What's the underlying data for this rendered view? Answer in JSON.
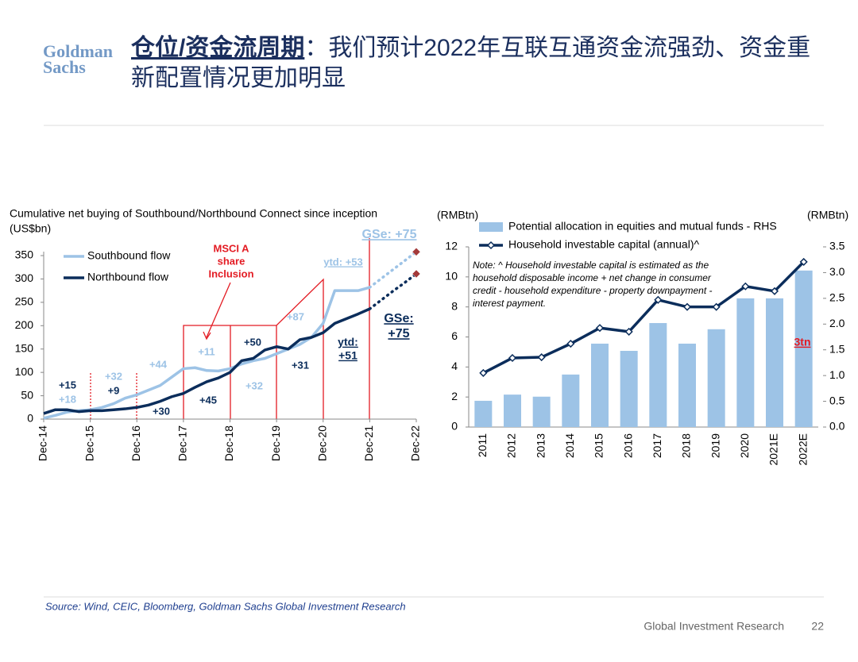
{
  "header": {
    "logo": [
      "Goldman",
      "Sachs"
    ],
    "title_highlight": "仓位/资金流周期",
    "title_rest": "：我们预计2022年互联互通资金流强劲、资金重新配置情况更加明显"
  },
  "chart_data": [
    {
      "type": "line",
      "title": "Cumulative net buying of Southbound/Northbound Connect since inception",
      "y_label": "(US$bn)",
      "x": [
        "Dec-14",
        "Mar-15",
        "Jun-15",
        "Sep-15",
        "Dec-15",
        "Mar-16",
        "Jun-16",
        "Sep-16",
        "Dec-16",
        "Mar-17",
        "Jun-17",
        "Sep-17",
        "Dec-17",
        "Mar-18",
        "Jun-18",
        "Sep-18",
        "Dec-18",
        "Mar-19",
        "Jun-19",
        "Sep-19",
        "Dec-19",
        "Mar-20",
        "Jun-20",
        "Sep-20",
        "Dec-20",
        "Mar-21",
        "Jun-21",
        "Sep-21",
        "Dec-21",
        "Mar-22",
        "Jun-22",
        "Sep-22",
        "Dec-22"
      ],
      "xticks": [
        "Dec-14",
        "Dec-15",
        "Dec-16",
        "Dec-17",
        "Dec-18",
        "Dec-19",
        "Dec-20",
        "Dec-21",
        "Dec-22"
      ],
      "ylim": [
        0,
        350
      ],
      "yticks": [
        0,
        50,
        100,
        150,
        200,
        250,
        300,
        350
      ],
      "forecast_from": "Dec-21",
      "series": [
        {
          "name": "Southbound flow",
          "color": "#9dc3e6",
          "values": [
            2,
            8,
            15,
            18,
            20,
            25,
            33,
            45,
            52,
            62,
            72,
            90,
            108,
            110,
            104,
            103,
            108,
            118,
            125,
            130,
            140,
            150,
            160,
            175,
            205,
            275,
            275,
            275,
            282,
            301,
            320,
            339,
            358
          ]
        },
        {
          "name": "Northbound flow",
          "color": "#0b2d5b",
          "values": [
            12,
            20,
            20,
            16,
            18,
            18,
            20,
            22,
            25,
            30,
            38,
            48,
            55,
            68,
            80,
            88,
            100,
            125,
            130,
            148,
            155,
            150,
            170,
            175,
            185,
            205,
            215,
            225,
            236,
            255,
            274,
            292,
            311
          ]
        }
      ],
      "annotations": [
        {
          "lines": [
            "GSe: +75"
          ],
          "color": "#9dc3e6",
          "underline": true
        },
        {
          "lines": [
            "ytd: +53"
          ],
          "color": "#9dc3e6",
          "underline": true
        },
        {
          "lines": [
            "+87"
          ],
          "color": "#9dc3e6"
        },
        {
          "lines": [
            "MSCI A",
            "share",
            "Inclusion"
          ],
          "color": "#e31b23"
        },
        {
          "lines": [
            "+11"
          ],
          "color": "#9dc3e6"
        },
        {
          "lines": [
            "+50"
          ],
          "color": "#0b2d5b"
        },
        {
          "lines": [
            "+44"
          ],
          "color": "#9dc3e6"
        },
        {
          "lines": [
            "+32"
          ],
          "color": "#9dc3e6"
        },
        {
          "lines": [
            "+9"
          ],
          "color": "#0b2d5b"
        },
        {
          "lines": [
            "+15"
          ],
          "color": "#0b2d5b"
        },
        {
          "lines": [
            "+18"
          ],
          "color": "#9dc3e6"
        },
        {
          "lines": [
            "+30"
          ],
          "color": "#0b2d5b"
        },
        {
          "lines": [
            "+45"
          ],
          "color": "#0b2d5b"
        },
        {
          "lines": [
            "+32"
          ],
          "color": "#9dc3e6"
        },
        {
          "lines": [
            "+31"
          ],
          "color": "#0b2d5b"
        },
        {
          "lines": [
            "ytd:",
            "+51"
          ],
          "color": "#0b2d5b",
          "underline": true
        },
        {
          "lines": [
            "GSe:",
            "+75"
          ],
          "color": "#0b2d5b",
          "underline": true
        }
      ]
    },
    {
      "type": "bar_line",
      "categories": [
        "2011",
        "2012",
        "2013",
        "2014",
        "2015",
        "2016",
        "2017",
        "2018",
        "2019",
        "2020",
        "2021E",
        "2022E"
      ],
      "y_label_left": "(RMBtn)",
      "y_label_right": "(RMBtn)",
      "ylim": [
        0,
        12
      ],
      "yticks": [
        0,
        2,
        4,
        6,
        8,
        10,
        12
      ],
      "y2lim": [
        0,
        3.5
      ],
      "y2ticks": [
        {
          "value": 0,
          "label": "0.0"
        },
        0.5,
        {
          "value": 1,
          "label": "1.0"
        },
        1.5,
        {
          "value": 2,
          "label": "2.0"
        },
        2.5,
        {
          "value": 3,
          "label": "3.0"
        },
        3.5
      ],
      "series": [
        {
          "name": "Potential allocation in equities and mutual funds - RHS",
          "type": "bar",
          "axis": "y2",
          "color": "#9dc3e6",
          "values": [
            0.51,
            0.63,
            0.59,
            1.02,
            1.62,
            1.48,
            2.02,
            1.62,
            1.9,
            2.5,
            2.5,
            3.04
          ]
        },
        {
          "name": "Household investable capital (annual)^",
          "type": "line",
          "color": "#0b2d5b",
          "values": [
            3.6,
            4.6,
            4.65,
            5.55,
            6.6,
            6.35,
            8.47,
            8.0,
            8.0,
            9.37,
            9.05,
            11.0
          ]
        }
      ],
      "note": [
        "Note: ^ Household investable capital is estimated as the",
        "household disposable income + net change in consumer",
        "credit - household expenditure - property downpayment -",
        "interest payment."
      ],
      "annotations": [
        {
          "lines": [
            "3tn"
          ],
          "color": "#e31b23",
          "underline": true
        }
      ]
    }
  ],
  "footer": {
    "source": "Source: Wind, CEIC, Bloomberg, Goldman Sachs Global Investment Research",
    "org": "Global Investment Research",
    "page_number": 22
  }
}
